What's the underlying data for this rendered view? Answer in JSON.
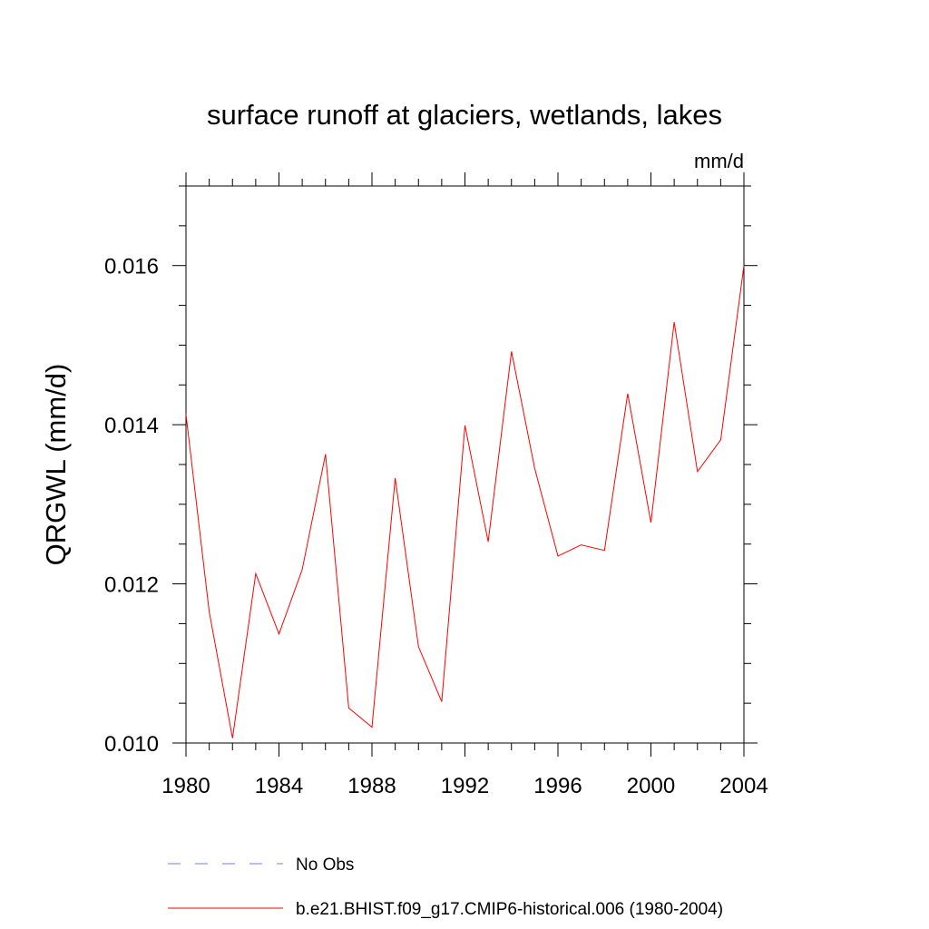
{
  "chart_data": {
    "type": "line",
    "title": "surface runoff at glaciers, wetlands, lakes",
    "units": "mm/d",
    "ylabel": "QRGWL  (mm/d)",
    "xlabel": "",
    "xlim": [
      1980,
      2004
    ],
    "ylim": [
      0.01,
      0.017
    ],
    "x_ticks": [
      "1980",
      "1984",
      "1988",
      "1992",
      "1996",
      "2000",
      "2004"
    ],
    "y_ticks": [
      "0.010",
      "0.012",
      "0.014",
      "0.016"
    ],
    "x": [
      1980,
      1981,
      1982,
      1983,
      1984,
      1985,
      1986,
      1987,
      1988,
      1989,
      1990,
      1991,
      1992,
      1993,
      1994,
      1995,
      1996,
      1997,
      1998,
      1999,
      2000,
      2001,
      2002,
      2003,
      2004
    ],
    "series": [
      {
        "name": "b.e21.BHIST.f09_g17.CMIP6-historical.006 (1980-2004)",
        "color": "#ff0000",
        "values": [
          0.01413,
          0.01165,
          0.01006,
          0.01213,
          0.01137,
          0.01218,
          0.01363,
          0.01044,
          0.0102,
          0.01333,
          0.01121,
          0.01052,
          0.01399,
          0.01253,
          0.01492,
          0.01345,
          0.01235,
          0.01249,
          0.01242,
          0.01439,
          0.01277,
          0.01529,
          0.01341,
          0.01381,
          0.016
        ]
      }
    ],
    "legend": [
      {
        "label": "No Obs",
        "color": "#7777ff",
        "style": "dashed"
      },
      {
        "label": "b.e21.BHIST.f09_g17.CMIP6-historical.006 (1980-2004)",
        "color": "#ff0000",
        "style": "solid"
      }
    ],
    "legend_position": "bottom",
    "grid": false
  }
}
